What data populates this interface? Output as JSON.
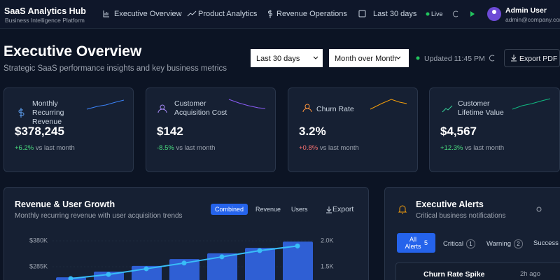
{
  "header": {
    "brand": {
      "title": "SaaS Analytics Hub",
      "subtitle": "Business Intelligence Platform"
    },
    "nav": [
      "Executive Overview",
      "Product Analytics",
      "Revenue Operations"
    ],
    "date_range": "Last 30 days",
    "status": "Live",
    "user": {
      "name": "Admin User",
      "email": "admin@company.com"
    }
  },
  "page": {
    "title": "Executive Overview",
    "subtitle": "Strategic SaaS performance insights and key business metrics",
    "filters": [
      "Last 30 days",
      "Month over Month"
    ],
    "updated": "Updated 11:45 PM",
    "export": "Export PDF"
  },
  "kpis": [
    {
      "label": "Monthly Recurring Revenue",
      "value": "$378,245",
      "change": "+6.2%",
      "comparison": "vs last month"
    },
    {
      "label": "Customer Acquisition Cost",
      "value": "$142",
      "change": "-8.5%",
      "comparison": "vs last month"
    },
    {
      "label": "Churn Rate",
      "value": "3.2%",
      "change": "+0.8%",
      "comparison": "vs last month"
    },
    {
      "label": "Customer Lifetime Value",
      "value": "$4,567",
      "change": "+12.3%",
      "comparison": "vs last month"
    }
  ],
  "revenue_chart": {
    "title": "Revenue & User Growth",
    "subtitle": "Monthly recurring revenue with user acquisition trends",
    "tabs": [
      "Combined",
      "Revenue",
      "Users"
    ],
    "export": "Export",
    "ylim": [
      236200,
      405700
    ],
    "yticks": [
      {
        "value": 380000,
        "label": "$380K"
      },
      {
        "value": 285000,
        "label": "$285K"
      }
    ],
    "y2lim": [
      1243,
      2135
    ],
    "y2ticks": [
      {
        "value": 2000,
        "label": "2.0K"
      },
      {
        "value": 1500,
        "label": "1.5K"
      }
    ],
    "series": [
      {
        "type": "bar",
        "color": "#2f5fd4",
        "values": [
          246000,
          267000,
          288000,
          313000,
          334000,
          354000,
          377000
        ]
      },
      {
        "type": "line",
        "axis": "y2",
        "color": "#38bdf8",
        "values": [
          1270,
          1350,
          1460,
          1570,
          1690,
          1810,
          1900
        ]
      }
    ]
  },
  "alerts": {
    "title": "Executive Alerts",
    "subtitle": "Critical business notifications",
    "tabs": [
      {
        "label": "All Alerts",
        "count": 5
      },
      {
        "label": "Critical",
        "count": 1
      },
      {
        "label": "Warning",
        "count": 2
      },
      {
        "label": "Success"
      }
    ],
    "items": [
      {
        "title": "Churn Rate Spike",
        "time": "2h ago"
      }
    ]
  }
}
